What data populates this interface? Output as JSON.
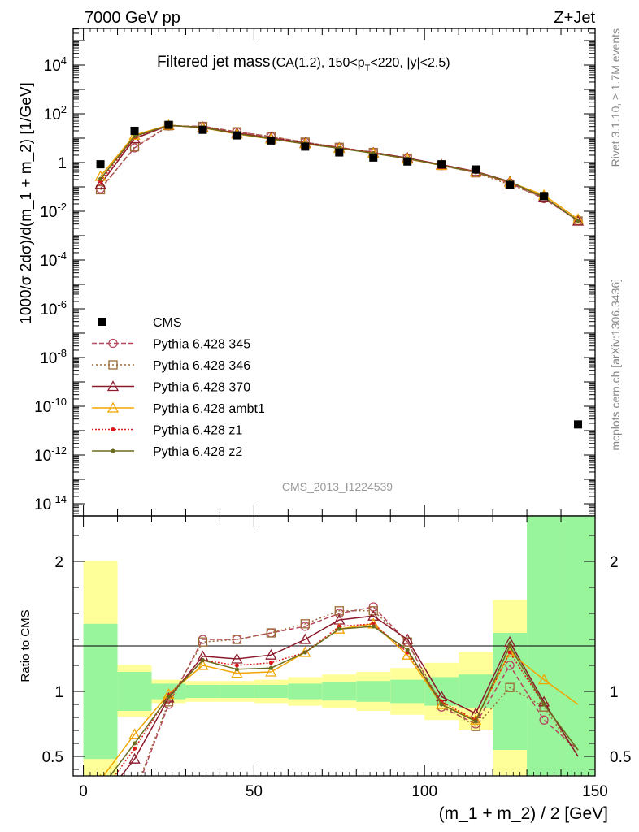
{
  "header": {
    "left": "7000 GeV pp",
    "right": "Z+Jet",
    "plot_title": "Filtered jet mass",
    "plot_title_small": "(CA(1.2), 150<p",
    "plot_title_sub": "T",
    "plot_title_tail": "<220, |y|<2.5)",
    "analysis_id": "CMS_2013_I1224539",
    "side_top": "Rivet 3.1.10, ≥ 1.7M events",
    "side_bottom": "mcplots.cern.ch [arXiv:1306.3436]"
  },
  "axes": {
    "ylabel_top": "1000/σ 2dσ)/d(m_1 + m_2) [1/GeV]",
    "ylabel_bottom": "Ratio to CMS",
    "xlabel": "(m_1 + m_2) / 2 [GeV]",
    "xticks": [
      "0",
      "50",
      "100",
      "150"
    ],
    "ratio_ticks": [
      "0.5",
      "1",
      "2"
    ]
  },
  "chart_data": {
    "type": "line",
    "xlim": [
      -3,
      150
    ],
    "ylim_main_log10": [
      -14.5,
      5.5
    ],
    "ylim_ratio": [
      0.35,
      2.35
    ],
    "y_scale": "log",
    "x": [
      5,
      15,
      25,
      35,
      45,
      55,
      65,
      75,
      85,
      95,
      105,
      115,
      125,
      135,
      145
    ],
    "data": {
      "name": "CMS",
      "values": [
        0.85,
        20,
        35,
        22,
        13,
        8,
        4.5,
        2.6,
        1.6,
        1.1,
        0.85,
        0.52,
        0.12,
        0.042,
        1.8e-11
      ],
      "band_inner": [
        0.52,
        0.15,
        0.06,
        0.05,
        0.05,
        0.05,
        0.06,
        0.07,
        0.08,
        0.09,
        0.11,
        0.13,
        0.45,
        1.5,
        1.5
      ],
      "band_outer": [
        1.0,
        0.2,
        0.09,
        0.08,
        0.08,
        0.09,
        0.11,
        0.13,
        0.15,
        0.18,
        0.22,
        0.3,
        0.7,
        1.5,
        1.5
      ]
    },
    "series": [
      {
        "name": "Pythia 6.428 345",
        "color": "#b5485f",
        "dash": "6,3",
        "marker": "circle",
        "ratio": [
          0.1,
          0.2,
          0.9,
          1.4,
          1.4,
          1.45,
          1.5,
          1.6,
          1.65,
          1.38,
          0.88,
          0.75,
          1.2,
          0.78,
          0.55
        ]
      },
      {
        "name": "Pythia 6.428 346",
        "color": "#9c6a36",
        "dash": "2,3",
        "marker": "square",
        "ratio": [
          0.09,
          0.22,
          0.92,
          1.38,
          1.4,
          1.45,
          1.52,
          1.62,
          1.62,
          1.38,
          0.9,
          0.73,
          1.03,
          0.88,
          0.5
        ]
      },
      {
        "name": "Pythia 6.428 370",
        "color": "#8b1a2b",
        "dash": "",
        "marker": "triangle",
        "ratio": [
          0.15,
          0.48,
          0.95,
          1.27,
          1.25,
          1.28,
          1.4,
          1.55,
          1.58,
          1.4,
          0.96,
          0.83,
          1.38,
          0.92,
          0.5
        ]
      },
      {
        "name": "Pythia 6.428 ambt1",
        "color": "#f0a500",
        "dash": "",
        "marker": "triangle",
        "ratio": [
          0.32,
          0.67,
          0.98,
          1.2,
          1.14,
          1.15,
          1.3,
          1.48,
          1.52,
          1.28,
          0.9,
          0.78,
          1.3,
          1.09,
          0.9
        ]
      },
      {
        "name": "Pythia 6.428 z1",
        "color": "#d91a1a",
        "dash": "2,2",
        "marker": "dot",
        "ratio": [
          0.2,
          0.56,
          0.97,
          1.24,
          1.2,
          1.22,
          1.3,
          1.5,
          1.52,
          1.3,
          0.92,
          0.78,
          1.3,
          0.9,
          0.55
        ]
      },
      {
        "name": "Pythia 6.428 z2",
        "color": "#6b6b1e",
        "dash": "",
        "marker": "dot",
        "ratio": [
          0.25,
          0.6,
          0.96,
          1.24,
          1.17,
          1.18,
          1.3,
          1.48,
          1.5,
          1.32,
          0.9,
          0.77,
          1.35,
          0.9,
          0.55
        ]
      }
    ]
  }
}
